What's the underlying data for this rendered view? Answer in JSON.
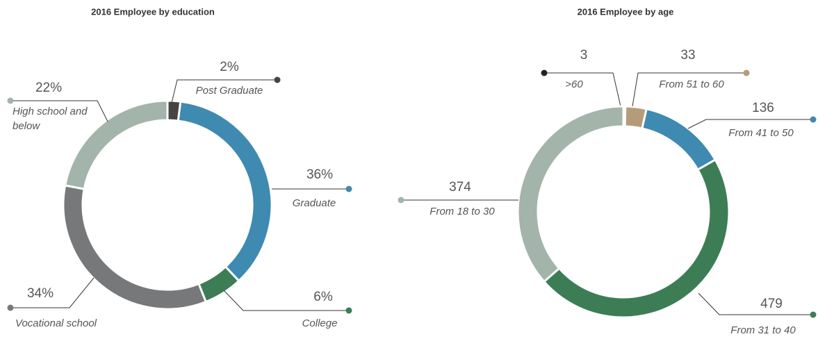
{
  "chart_data": [
    {
      "type": "donut",
      "title": "2016 Employee by education",
      "categories": [
        "Post Graduate",
        "Graduate",
        "College",
        "Vocational school",
        "High school and below"
      ],
      "values": [
        2,
        36,
        6,
        34,
        22
      ],
      "value_labels": [
        "2%",
        "36%",
        "6%",
        "34%",
        "22%"
      ],
      "colors": [
        "#444444",
        "#3e8ab0",
        "#3d7d55",
        "#77787a",
        "#a3b4ab"
      ]
    },
    {
      "type": "donut",
      "title": "2016 Employee by age",
      "categories": [
        ">60",
        "From 51 to 60",
        "From 41 to 50",
        "From 31 to 40",
        "From 18 to 30"
      ],
      "values": [
        3,
        33,
        136,
        479,
        374
      ],
      "colors": [
        "#222222",
        "#b59c78",
        "#3e8ab0",
        "#3d7d55",
        "#a3b4ab"
      ]
    }
  ]
}
